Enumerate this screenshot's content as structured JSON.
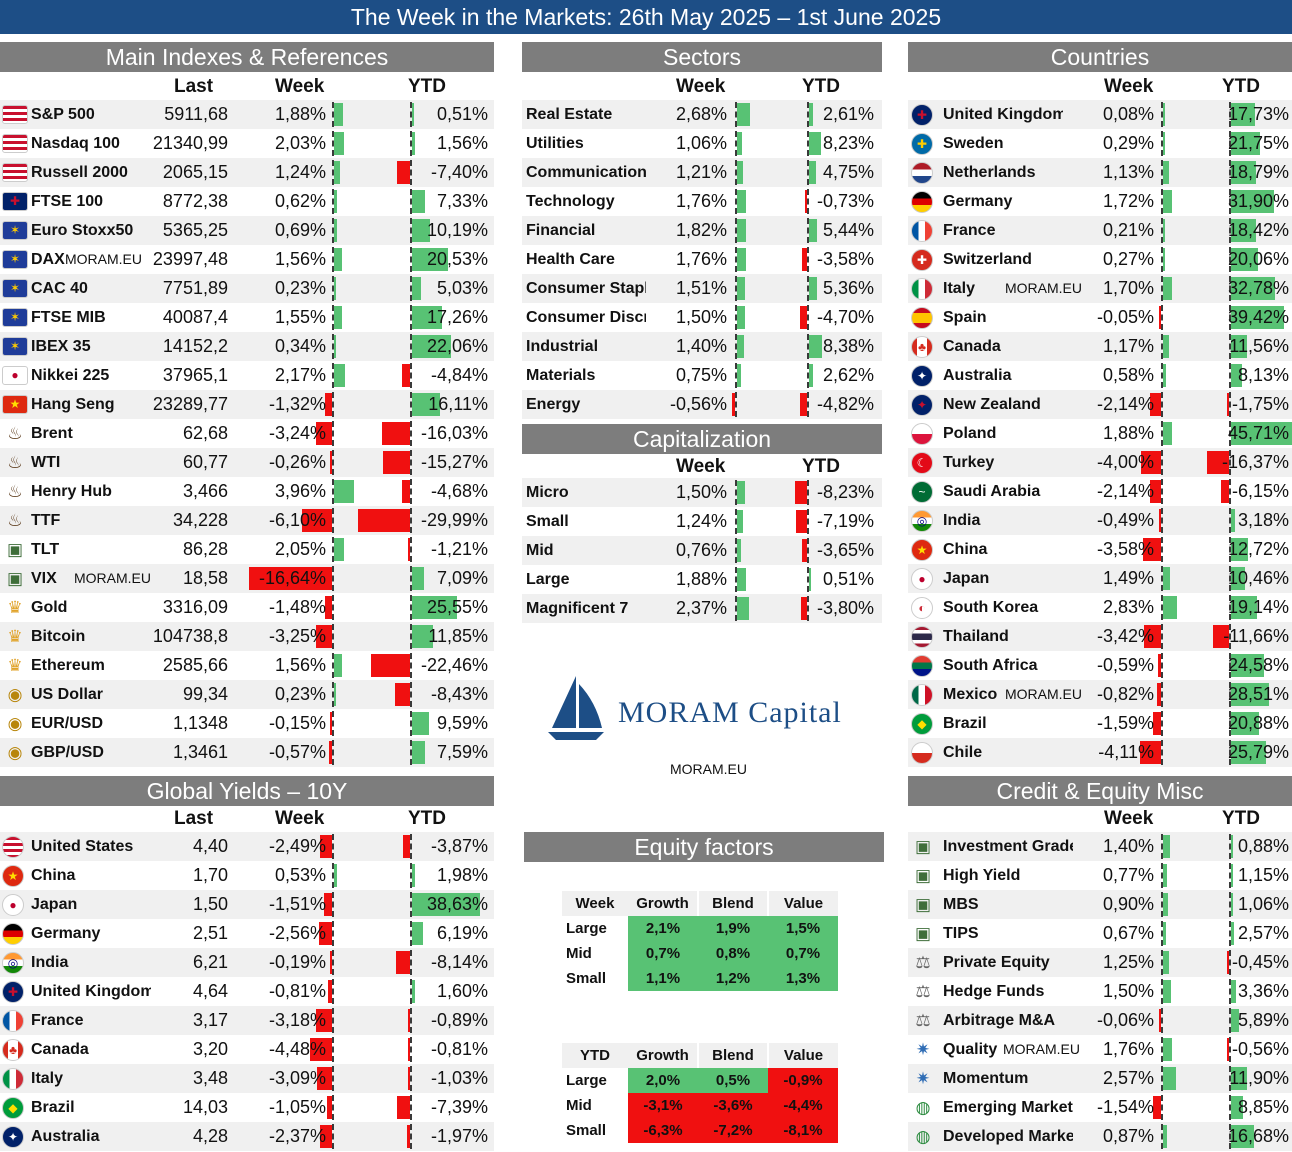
{
  "title": "The Week in the Markets: 26th May 2025 – 1st June 2025",
  "watermark": "MORAM.EU",
  "colors": {
    "positive": "#58c274",
    "negative": "#f01010",
    "header": "#7d7d7d",
    "title_bar": "#1d4e86"
  },
  "brand": {
    "name": "MORAM Capital",
    "site": "MORAM.EU"
  },
  "main": {
    "title": "Main Indexes & References",
    "cols": {
      "last": "Last",
      "week": "Week",
      "ytd": "YTD"
    },
    "rows": [
      {
        "name": "S&P 500",
        "icon": "flag-us",
        "last": "5911,68",
        "week": "1,88%",
        "ytd": "0,51%",
        "w": 1.88,
        "y": 0.51
      },
      {
        "name": "Nasdaq 100",
        "icon": "flag-us",
        "last": "21340,99",
        "week": "2,03%",
        "ytd": "1,56%",
        "w": 2.03,
        "y": 1.56
      },
      {
        "name": "Russell 2000",
        "icon": "flag-us",
        "last": "2065,15",
        "week": "1,24%",
        "ytd": "-7,40%",
        "w": 1.24,
        "y": -7.4
      },
      {
        "name": "FTSE 100",
        "icon": "flag-uk",
        "last": "8772,38",
        "week": "0,62%",
        "ytd": "7,33%",
        "w": 0.62,
        "y": 7.33
      },
      {
        "name": "Euro Stoxx50",
        "icon": "flag-eu",
        "last": "5365,25",
        "week": "0,69%",
        "ytd": "10,19%",
        "w": 0.69,
        "y": 10.19
      },
      {
        "name": "DAX",
        "icon": "flag-eu",
        "last": "23997,48",
        "week": "1,56%",
        "ytd": "20,53%",
        "w": 1.56,
        "y": 20.53,
        "wm": true
      },
      {
        "name": "CAC 40",
        "icon": "flag-eu",
        "last": "7751,89",
        "week": "0,23%",
        "ytd": "5,03%",
        "w": 0.23,
        "y": 5.03
      },
      {
        "name": "FTSE MIB",
        "icon": "flag-eu",
        "last": "40087,4",
        "week": "1,55%",
        "ytd": "17,26%",
        "w": 1.55,
        "y": 17.26
      },
      {
        "name": "IBEX 35",
        "icon": "flag-eu",
        "last": "14152,2",
        "week": "0,34%",
        "ytd": "22,06%",
        "w": 0.34,
        "y": 22.06
      },
      {
        "name": "Nikkei 225",
        "icon": "flag-jp",
        "last": "37965,1",
        "week": "2,17%",
        "ytd": "-4,84%",
        "w": 2.17,
        "y": -4.84
      },
      {
        "name": "Hang Seng",
        "icon": "flag-cn",
        "last": "23289,77",
        "week": "-1,32%",
        "ytd": "16,11%",
        "w": -1.32,
        "y": 16.11
      },
      {
        "name": "Brent",
        "icon": "oil-icon",
        "last": "62,68",
        "week": "-3,24%",
        "ytd": "-16,03%",
        "w": -3.24,
        "y": -16.03
      },
      {
        "name": "WTI",
        "icon": "oil-icon",
        "last": "60,77",
        "week": "-0,26%",
        "ytd": "-15,27%",
        "w": -0.26,
        "y": -15.27
      },
      {
        "name": "Henry Hub",
        "icon": "oil-icon",
        "last": "3,466",
        "week": "3,96%",
        "ytd": "-4,68%",
        "w": 3.96,
        "y": -4.68
      },
      {
        "name": "TTF",
        "icon": "oil-icon",
        "last": "34,228",
        "week": "-6,10%",
        "ytd": "-29,99%",
        "w": -6.1,
        "y": -29.99
      },
      {
        "name": "TLT",
        "icon": "bond-icon",
        "last": "86,28",
        "week": "2,05%",
        "ytd": "-1,21%",
        "w": 2.05,
        "y": -1.21
      },
      {
        "name": "VIX",
        "icon": "bond-icon",
        "last": "18,58",
        "week": "-16,64%",
        "ytd": "7,09%",
        "w": -16.64,
        "y": 7.09,
        "wm": true
      },
      {
        "name": "Gold",
        "icon": "gold-icon",
        "last": "3316,09",
        "week": "-1,48%",
        "ytd": "25,55%",
        "w": -1.48,
        "y": 25.55
      },
      {
        "name": "Bitcoin",
        "icon": "gold-icon",
        "last": "104738,8",
        "week": "-3,25%",
        "ytd": "11,85%",
        "w": -3.25,
        "y": 11.85
      },
      {
        "name": "Ethereum",
        "icon": "gold-icon",
        "last": "2585,66",
        "week": "1,56%",
        "ytd": "-22,46%",
        "w": 1.56,
        "y": -22.46
      },
      {
        "name": "US Dollar",
        "icon": "coins-icon",
        "last": "99,34",
        "week": "0,23%",
        "ytd": "-8,43%",
        "w": 0.23,
        "y": -8.43
      },
      {
        "name": "EUR/USD",
        "icon": "coins-icon",
        "last": "1,1348",
        "week": "-0,15%",
        "ytd": "9,59%",
        "w": -0.15,
        "y": 9.59
      },
      {
        "name": "GBP/USD",
        "icon": "coins-icon",
        "last": "1,3461",
        "week": "-0,57%",
        "ytd": "7,59%",
        "w": -0.57,
        "y": 7.59
      }
    ]
  },
  "sectors": {
    "title": "Sectors",
    "cols": {
      "week": "Week",
      "ytd": "YTD"
    },
    "rows": [
      {
        "name": "Real Estate",
        "week": "2,68%",
        "ytd": "2,61%",
        "w": 2.68,
        "y": 2.61
      },
      {
        "name": "Utilities",
        "week": "1,06%",
        "ytd": "8,23%",
        "w": 1.06,
        "y": 8.23
      },
      {
        "name": "Communication",
        "week": "1,21%",
        "ytd": "4,75%",
        "w": 1.21,
        "y": 4.75
      },
      {
        "name": "Technology",
        "week": "1,76%",
        "ytd": "-0,73%",
        "w": 1.76,
        "y": -0.73
      },
      {
        "name": "Financial",
        "week": "1,82%",
        "ytd": "5,44%",
        "w": 1.82,
        "y": 5.44
      },
      {
        "name": "Health Care",
        "week": "1,76%",
        "ytd": "-3,58%",
        "w": 1.76,
        "y": -3.58
      },
      {
        "name": "Consumer Staple",
        "week": "1,51%",
        "ytd": "5,36%",
        "w": 1.51,
        "y": 5.36
      },
      {
        "name": "Consumer Discre",
        "week": "1,50%",
        "ytd": "-4,70%",
        "w": 1.5,
        "y": -4.7
      },
      {
        "name": "Industrial",
        "week": "1,40%",
        "ytd": "8,38%",
        "w": 1.4,
        "y": 8.38
      },
      {
        "name": "Materials",
        "week": "0,75%",
        "ytd": "2,62%",
        "w": 0.75,
        "y": 2.62
      },
      {
        "name": "Energy",
        "week": "-0,56%",
        "ytd": "-4,82%",
        "w": -0.56,
        "y": -4.82
      }
    ]
  },
  "capitalization": {
    "title": "Capitalization",
    "cols": {
      "week": "Week",
      "ytd": "YTD"
    },
    "rows": [
      {
        "name": "Micro",
        "week": "1,50%",
        "ytd": "-8,23%",
        "w": 1.5,
        "y": -8.23
      },
      {
        "name": "Small",
        "week": "1,24%",
        "ytd": "-7,19%",
        "w": 1.24,
        "y": -7.19
      },
      {
        "name": "Mid",
        "week": "0,76%",
        "ytd": "-3,65%",
        "w": 0.76,
        "y": -3.65
      },
      {
        "name": "Large",
        "week": "1,88%",
        "ytd": "0,51%",
        "w": 1.88,
        "y": 0.51
      },
      {
        "name": "Magnificent 7",
        "week": "2,37%",
        "ytd": "-3,80%",
        "w": 2.37,
        "y": -3.8
      }
    ]
  },
  "countries": {
    "title": "Countries",
    "cols": {
      "week": "Week",
      "ytd": "YTD"
    },
    "rows": [
      {
        "name": "United Kingdom",
        "icon": "flag-uk",
        "week": "0,08%",
        "ytd": "17,73%",
        "w": 0.08,
        "y": 17.73
      },
      {
        "name": "Sweden",
        "icon": "flag-se",
        "week": "0,29%",
        "ytd": "21,75%",
        "w": 0.29,
        "y": 21.75
      },
      {
        "name": "Netherlands",
        "icon": "flag-nl",
        "week": "1,13%",
        "ytd": "18,79%",
        "w": 1.13,
        "y": 18.79
      },
      {
        "name": "Germany",
        "icon": "flag-de",
        "week": "1,72%",
        "ytd": "31,90%",
        "w": 1.72,
        "y": 31.9
      },
      {
        "name": "France",
        "icon": "flag-fr",
        "week": "0,21%",
        "ytd": "18,42%",
        "w": 0.21,
        "y": 18.42
      },
      {
        "name": "Switzerland",
        "icon": "flag-ch",
        "week": "0,27%",
        "ytd": "20,06%",
        "w": 0.27,
        "y": 20.06
      },
      {
        "name": "Italy",
        "icon": "flag-it",
        "week": "1,70%",
        "ytd": "32,78%",
        "w": 1.7,
        "y": 32.78,
        "wm": true
      },
      {
        "name": "Spain",
        "icon": "flag-es",
        "week": "-0,05%",
        "ytd": "39,42%",
        "w": -0.05,
        "y": 39.42
      },
      {
        "name": "Canada",
        "icon": "flag-ca",
        "week": "1,17%",
        "ytd": "11,56%",
        "w": 1.17,
        "y": 11.56
      },
      {
        "name": "Australia",
        "icon": "flag-au",
        "week": "0,58%",
        "ytd": "8,13%",
        "w": 0.58,
        "y": 8.13
      },
      {
        "name": "New Zealand",
        "icon": "flag-nz",
        "week": "-2,14%",
        "ytd": "-1,75%",
        "w": -2.14,
        "y": -1.75
      },
      {
        "name": "Poland",
        "icon": "flag-pl",
        "week": "1,88%",
        "ytd": "45,71%",
        "w": 1.88,
        "y": 45.71
      },
      {
        "name": "Turkey",
        "icon": "flag-tr",
        "week": "-4,00%",
        "ytd": "-16,37%",
        "w": -4.0,
        "y": -16.37
      },
      {
        "name": "Saudi Arabia",
        "icon": "flag-sa",
        "week": "-2,14%",
        "ytd": "-6,15%",
        "w": -2.14,
        "y": -6.15
      },
      {
        "name": "India",
        "icon": "flag-in",
        "week": "-0,49%",
        "ytd": "3,18%",
        "w": -0.49,
        "y": 3.18
      },
      {
        "name": "China",
        "icon": "flag-cn",
        "week": "-3,58%",
        "ytd": "12,72%",
        "w": -3.58,
        "y": 12.72
      },
      {
        "name": "Japan",
        "icon": "flag-jp",
        "week": "1,49%",
        "ytd": "10,46%",
        "w": 1.49,
        "y": 10.46
      },
      {
        "name": "South Korea",
        "icon": "flag-kr",
        "week": "2,83%",
        "ytd": "19,14%",
        "w": 2.83,
        "y": 19.14
      },
      {
        "name": "Thailand",
        "icon": "flag-th",
        "week": "-3,42%",
        "ytd": "-11,66%",
        "w": -3.42,
        "y": -11.66
      },
      {
        "name": "South Africa",
        "icon": "flag-za",
        "week": "-0,59%",
        "ytd": "24,58%",
        "w": -0.59,
        "y": 24.58
      },
      {
        "name": "Mexico",
        "icon": "flag-mx",
        "week": "-0,82%",
        "ytd": "28,51%",
        "w": -0.82,
        "y": 28.51,
        "wm": true
      },
      {
        "name": "Brazil",
        "icon": "flag-br",
        "week": "-1,59%",
        "ytd": "20,88%",
        "w": -1.59,
        "y": 20.88
      },
      {
        "name": "Chile",
        "icon": "flag-cl",
        "week": "-4,11%",
        "ytd": "25,79%",
        "w": -4.11,
        "y": 25.79
      }
    ]
  },
  "yields": {
    "title": "Global Yields – 10Y",
    "cols": {
      "last": "Last",
      "week": "Week",
      "ytd": "YTD"
    },
    "rows": [
      {
        "name": "United States",
        "icon": "flag-us",
        "last": "4,40",
        "week": "-2,49%",
        "ytd": "-3,87%",
        "w": -2.49,
        "y": -3.87
      },
      {
        "name": "China",
        "icon": "flag-cn",
        "last": "1,70",
        "week": "0,53%",
        "ytd": "1,98%",
        "w": 0.53,
        "y": 1.98
      },
      {
        "name": "Japan",
        "icon": "flag-jp",
        "last": "1,50",
        "week": "-1,51%",
        "ytd": "38,63%",
        "w": -1.51,
        "y": 38.63
      },
      {
        "name": "Germany",
        "icon": "flag-de",
        "last": "2,51",
        "week": "-2,56%",
        "ytd": "6,19%",
        "w": -2.56,
        "y": 6.19
      },
      {
        "name": "India",
        "icon": "flag-in",
        "last": "6,21",
        "week": "-0,19%",
        "ytd": "-8,14%",
        "w": -0.19,
        "y": -8.14
      },
      {
        "name": "United Kingdom",
        "icon": "flag-uk",
        "last": "4,64",
        "week": "-0,81%",
        "ytd": "1,60%",
        "w": -0.81,
        "y": 1.6
      },
      {
        "name": "France",
        "icon": "flag-fr",
        "last": "3,17",
        "week": "-3,18%",
        "ytd": "-0,89%",
        "w": -3.18,
        "y": -0.89
      },
      {
        "name": "Canada",
        "icon": "flag-ca",
        "last": "3,20",
        "week": "-4,48%",
        "ytd": "-0,81%",
        "w": -4.48,
        "y": -0.81
      },
      {
        "name": "Italy",
        "icon": "flag-it",
        "last": "3,48",
        "week": "-3,09%",
        "ytd": "-1,03%",
        "w": -3.09,
        "y": -1.03
      },
      {
        "name": "Brazil",
        "icon": "flag-br",
        "last": "14,03",
        "week": "-1,05%",
        "ytd": "-7,39%",
        "w": -1.05,
        "y": -7.39
      },
      {
        "name": "Australia",
        "icon": "flag-au",
        "last": "4,28",
        "week": "-2,37%",
        "ytd": "-1,97%",
        "w": -2.37,
        "y": -1.97
      }
    ]
  },
  "credit": {
    "title": "Credit & Equity Misc",
    "cols": {
      "week": "Week",
      "ytd": "YTD"
    },
    "rows": [
      {
        "name": "Investment Grade",
        "icon": "bond-icon",
        "week": "1,40%",
        "ytd": "0,88%",
        "w": 1.4,
        "y": 0.88
      },
      {
        "name": "High Yield",
        "icon": "bond-icon",
        "week": "0,77%",
        "ytd": "1,15%",
        "w": 0.77,
        "y": 1.15
      },
      {
        "name": "MBS",
        "icon": "bond-icon",
        "week": "0,90%",
        "ytd": "1,06%",
        "w": 0.9,
        "y": 1.06
      },
      {
        "name": "TIPS",
        "icon": "bond-icon",
        "week": "0,67%",
        "ytd": "2,57%",
        "w": 0.67,
        "y": 2.57
      },
      {
        "name": "Private Equity",
        "icon": "scale-icon",
        "week": "1,25%",
        "ytd": "-0,45%",
        "w": 1.25,
        "y": -0.45
      },
      {
        "name": "Hedge Funds",
        "icon": "scale-icon",
        "week": "1,50%",
        "ytd": "3,36%",
        "w": 1.5,
        "y": 3.36
      },
      {
        "name": "Arbitrage M&A",
        "icon": "scale-icon",
        "week": "-0,06%",
        "ytd": "5,89%",
        "w": -0.06,
        "y": 5.89
      },
      {
        "name": "Quality",
        "icon": "bulb-icon",
        "week": "1,76%",
        "ytd": "-0,56%",
        "w": 1.76,
        "y": -0.56,
        "wm": true
      },
      {
        "name": "Momentum",
        "icon": "bulb-icon",
        "week": "2,57%",
        "ytd": "11,90%",
        "w": 2.57,
        "y": 11.9
      },
      {
        "name": "Emerging Markets",
        "icon": "globe-icon",
        "week": "-1,54%",
        "ytd": "8,85%",
        "w": -1.54,
        "y": 8.85
      },
      {
        "name": "Developed Market",
        "icon": "globe-icon",
        "week": "0,87%",
        "ytd": "16,68%",
        "w": 0.87,
        "y": 16.68
      }
    ]
  },
  "factors": {
    "title": "Equity factors",
    "cols": [
      "Growth",
      "Blend",
      "Value"
    ],
    "week": {
      "label": "Week",
      "rows": [
        {
          "label": "Large",
          "cells": [
            "2,1%",
            "1,9%",
            "1,5%"
          ],
          "signs": [
            1,
            1,
            1
          ]
        },
        {
          "label": "Mid",
          "cells": [
            "0,7%",
            "0,8%",
            "0,7%"
          ],
          "signs": [
            1,
            1,
            1
          ]
        },
        {
          "label": "Small",
          "cells": [
            "1,1%",
            "1,2%",
            "1,3%"
          ],
          "signs": [
            1,
            1,
            1
          ]
        }
      ]
    },
    "ytd": {
      "label": "YTD",
      "rows": [
        {
          "label": "Large",
          "cells": [
            "2,0%",
            "0,5%",
            "-0,9%"
          ],
          "signs": [
            1,
            1,
            -1
          ]
        },
        {
          "label": "Mid",
          "cells": [
            "-3,1%",
            "-3,6%",
            "-4,4%"
          ],
          "signs": [
            -1,
            -1,
            -1
          ]
        },
        {
          "label": "Small",
          "cells": [
            "-6,3%",
            "-7,2%",
            "-8,1%"
          ],
          "signs": [
            -1,
            -1,
            -1
          ]
        }
      ]
    }
  }
}
